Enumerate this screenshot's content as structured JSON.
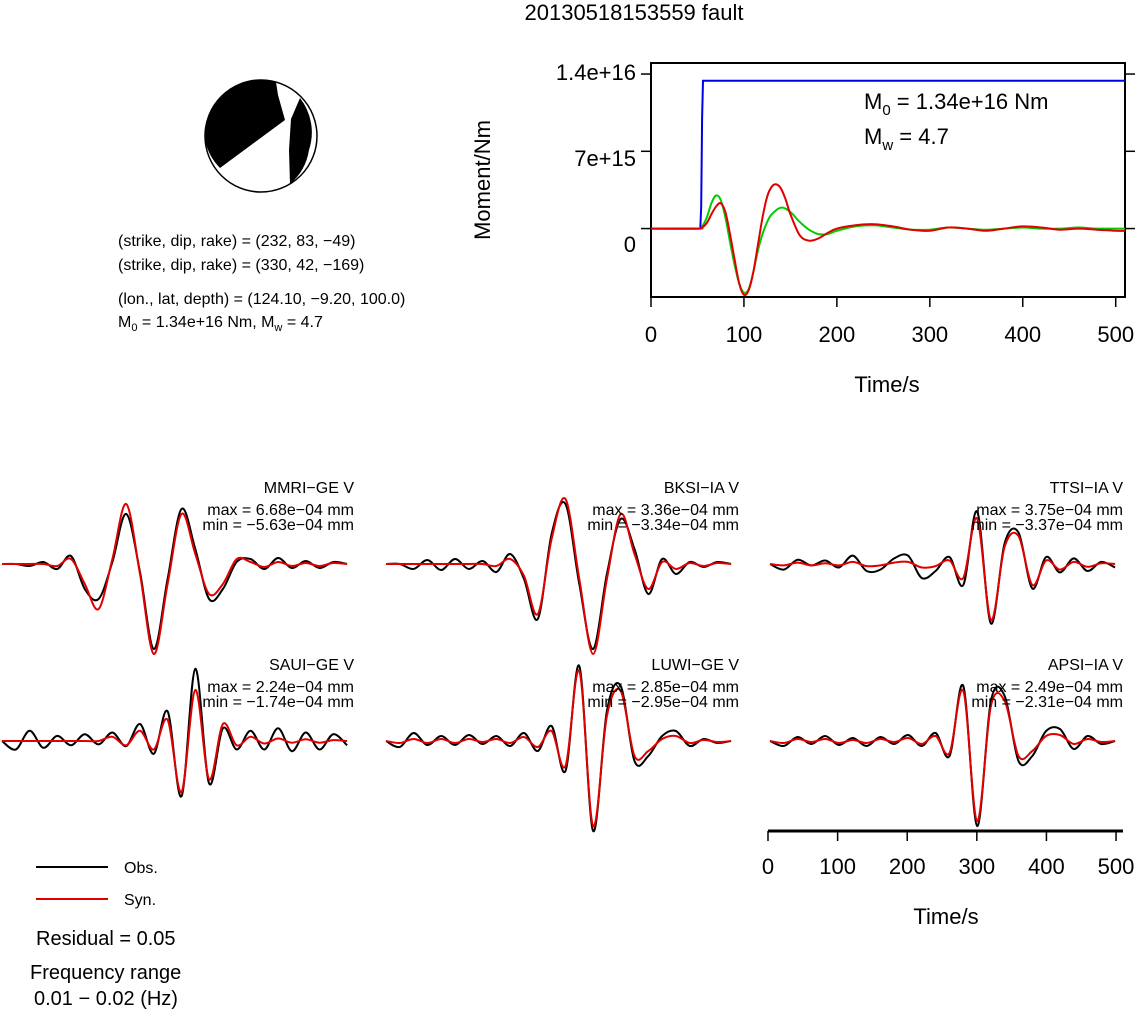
{
  "title": "20130518153559 fault",
  "mechanism": {
    "lines": [
      "(strike, dip, rake) = (232, 83, −49)",
      "(strike, dip, rake) = (330, 42, −169)",
      "(lon., lat, depth) = (124.10, −9.20, 100.0)"
    ],
    "m0_prefix": "M",
    "m0_sub": "0",
    "m0_rest": " = 1.34e+16 Nm, M",
    "mw_sub": "w",
    "mw_rest": " = 4.7"
  },
  "moment": {
    "ylabel": "Moment/Nm",
    "xlabel": "Time/s",
    "y_ticks": [
      "1.4e+16",
      "7e+15",
      "0"
    ],
    "x_ticks": [
      "0",
      "100",
      "200",
      "300",
      "400",
      "500"
    ],
    "annot_m0_prefix": "M",
    "annot_m0_sub": "0",
    "annot_m0_rest": " = 1.34e+16 Nm",
    "annot_mw_prefix": "M",
    "annot_mw_sub": "w",
    "annot_mw_rest": " = 4.7"
  },
  "waveforms_axis": {
    "xlabel": "Time/s",
    "x_ticks": [
      "0",
      "100",
      "200",
      "300",
      "400",
      "500"
    ]
  },
  "legend": {
    "obs": "Obs.",
    "syn": "Syn.",
    "residual": "Residual = 0.05",
    "freq_title": "Frequency range",
    "freq_value": "0.01 − 0.02 (Hz)"
  },
  "colors": {
    "obs": "#000000",
    "syn": "#e00000",
    "moment": "#0000e0",
    "rate": "#00cc00"
  },
  "chart_data": [
    {
      "type": "line",
      "ylabel": "Moment/Nm",
      "xlabel": "Time/s",
      "xlim": [
        0,
        510
      ],
      "ylim": [
        -6200000000000000.0,
        1.5e+16
      ],
      "series": [
        {
          "x": [
            0,
            53,
            54,
            55,
            56,
            510
          ],
          "y": [
            0,
            0,
            2000000000000000.0,
            1e+16,
            1.34e+16,
            1.34e+16
          ]
        },
        {
          "x": [
            0,
            50,
            55,
            60,
            65,
            70,
            75,
            80,
            85,
            90,
            95,
            100,
            105,
            110,
            115,
            120,
            125,
            130,
            140,
            150,
            160,
            170,
            180,
            190,
            200,
            220,
            240,
            260,
            280,
            300,
            320,
            340,
            360,
            380,
            400,
            420,
            440,
            460,
            480,
            500,
            510
          ],
          "y": [
            0,
            0,
            200000000000000.0,
            1000000000000000.0,
            2300000000000000.0,
            3000000000000000.0,
            2600000000000000.0,
            1000000000000000.0,
            -1200000000000000.0,
            -3300000000000000.0,
            -5000000000000000.0,
            -5800000000000000.0,
            -5500000000000000.0,
            -4000000000000000.0,
            -2000000000000000.0,
            -500000000000000.0,
            600000000000000.0,
            1300000000000000.0,
            1900000000000000.0,
            1500000000000000.0,
            600000000000000.0,
            -100000000000000.0,
            -500000000000000.0,
            -500000000000000.0,
            -200000000000000.0,
            200000000000000.0,
            300000000000000.0,
            100000000000000.0,
            -100000000000000.0,
            -100000000000000.0,
            100000000000000.0,
            0,
            -100000000000000.0,
            0,
            100000000000000.0,
            0,
            0,
            100000000000000.0,
            0,
            0,
            0
          ]
        },
        {
          "x": [
            0,
            50,
            55,
            60,
            65,
            70,
            75,
            80,
            85,
            90,
            95,
            100,
            105,
            110,
            115,
            120,
            125,
            130,
            135,
            140,
            145,
            150,
            160,
            170,
            180,
            190,
            200,
            220,
            240,
            260,
            280,
            300,
            320,
            340,
            360,
            380,
            400,
            420,
            440,
            460,
            480,
            500,
            510
          ],
          "y": [
            0,
            0,
            100000000000000.0,
            500000000000000.0,
            1300000000000000.0,
            2000000000000000.0,
            2300000000000000.0,
            1500000000000000.0,
            -500000000000000.0,
            -2800000000000000.0,
            -5000000000000000.0,
            -6000000000000000.0,
            -5600000000000000.0,
            -4000000000000000.0,
            -1500000000000000.0,
            1000000000000000.0,
            2900000000000000.0,
            3800000000000000.0,
            4000000000000000.0,
            3600000000000000.0,
            2600000000000000.0,
            1300000000000000.0,
            -600000000000000.0,
            -1100000000000000.0,
            -900000000000000.0,
            -400000000000000.0,
            0,
            300000000000000.0,
            400000000000000.0,
            200000000000000.0,
            -100000000000000.0,
            -200000000000000.0,
            100000000000000.0,
            0,
            -200000000000000.0,
            0,
            200000000000000.0,
            100000000000000.0,
            -100000000000000.0,
            0,
            -100000000000000.0,
            -200000000000000.0,
            -200000000000000.0
          ]
        }
      ]
    },
    {
      "type": "line",
      "title": "MMRI−GE V",
      "annotations": [
        "max = 6.68e−04 mm",
        "min = −5.63e−04 mm"
      ],
      "xlim": [
        0,
        510
      ],
      "series": [
        {
          "x": [
            0,
            20,
            40,
            60,
            80,
            100,
            120,
            140,
            160,
            180,
            200,
            220,
            240,
            260,
            280,
            300,
            320,
            340,
            360,
            380,
            400,
            420,
            440,
            460,
            480,
            500
          ],
          "y": [
            0,
            0,
            -0.02,
            0.02,
            -0.05,
            0.08,
            -0.25,
            -0.35,
            0.02,
            0.5,
            -0.08,
            -0.85,
            -0.15,
            0.55,
            0.15,
            -0.35,
            -0.25,
            0.02,
            0.05,
            -0.05,
            0.06,
            -0.04,
            0.03,
            -0.04,
            0.02,
            0
          ]
        },
        {
          "x": [
            0,
            20,
            40,
            60,
            80,
            100,
            120,
            140,
            160,
            180,
            200,
            220,
            240,
            260,
            280,
            300,
            320,
            340,
            360,
            380,
            400,
            420,
            440,
            460,
            480,
            500
          ],
          "y": [
            0,
            0,
            0,
            0,
            -0.02,
            0.05,
            -0.2,
            -0.45,
            0.05,
            0.6,
            -0.1,
            -0.9,
            -0.2,
            0.5,
            0.1,
            -0.3,
            -0.2,
            0.05,
            0.02,
            -0.03,
            0.02,
            -0.02,
            0.01,
            -0.02,
            0.01,
            0
          ]
        }
      ]
    },
    {
      "type": "line",
      "title": "BKSI−IA V",
      "annotations": [
        "max = 3.36e−04 mm",
        "min = −3.34e−04 mm"
      ],
      "xlim": [
        0,
        510
      ],
      "series": [
        {
          "x": [
            0,
            20,
            40,
            60,
            80,
            100,
            120,
            140,
            160,
            180,
            200,
            220,
            240,
            260,
            280,
            300,
            320,
            340,
            360,
            380,
            400,
            420,
            440,
            460,
            480,
            500
          ],
          "y": [
            0,
            0,
            -0.05,
            0.04,
            -0.06,
            0.05,
            -0.05,
            0.03,
            -0.08,
            0.1,
            -0.15,
            -0.55,
            0.3,
            0.6,
            -0.2,
            -0.85,
            -0.1,
            0.45,
            0.15,
            -0.3,
            0.05,
            -0.1,
            0.02,
            -0.03,
            0.02,
            0
          ]
        },
        {
          "x": [
            0,
            20,
            40,
            60,
            80,
            100,
            120,
            140,
            160,
            180,
            200,
            220,
            240,
            260,
            280,
            300,
            320,
            340,
            360,
            380,
            400,
            420,
            440,
            460,
            480,
            500
          ],
          "y": [
            0,
            0,
            0,
            0,
            0,
            0,
            0,
            0,
            -0.02,
            0.05,
            -0.12,
            -0.5,
            0.25,
            0.65,
            -0.15,
            -0.9,
            -0.15,
            0.5,
            0.1,
            -0.25,
            0.02,
            -0.05,
            0.01,
            -0.02,
            0.01,
            0
          ]
        }
      ]
    },
    {
      "type": "line",
      "title": "TTSI−IA V",
      "annotations": [
        "max = 3.75e−04 mm",
        "min = −3.37e−04 mm"
      ],
      "xlim": [
        0,
        510
      ],
      "series": [
        {
          "x": [
            0,
            20,
            40,
            60,
            80,
            100,
            120,
            140,
            160,
            180,
            200,
            220,
            240,
            260,
            280,
            300,
            320,
            340,
            360,
            380,
            400,
            420,
            440,
            460,
            480,
            500
          ],
          "y": [
            0,
            -0.08,
            0.06,
            -0.02,
            0.05,
            -0.05,
            0.12,
            -0.1,
            -0.08,
            0.08,
            0.12,
            -0.2,
            -0.1,
            0.1,
            -0.3,
            0.75,
            -0.85,
            0.3,
            0.45,
            -0.35,
            0.1,
            -0.12,
            0.08,
            -0.1,
            0.03,
            -0.05
          ]
        },
        {
          "x": [
            0,
            20,
            40,
            60,
            80,
            100,
            120,
            140,
            160,
            180,
            200,
            220,
            240,
            260,
            280,
            300,
            320,
            340,
            360,
            380,
            400,
            420,
            440,
            460,
            480,
            500
          ],
          "y": [
            0,
            -0.02,
            0.02,
            -0.02,
            0.01,
            -0.02,
            0.03,
            -0.03,
            -0.02,
            0.02,
            0.03,
            -0.05,
            -0.03,
            0.05,
            -0.2,
            0.65,
            -0.8,
            0.25,
            0.4,
            -0.3,
            0.05,
            -0.08,
            0.03,
            -0.04,
            0.01,
            0
          ]
        }
      ]
    },
    {
      "type": "line",
      "title": "SAUI−GE V",
      "annotations": [
        "max = 2.24e−04 mm",
        "min = −1.74e−04 mm"
      ],
      "xlim": [
        0,
        510
      ],
      "series": [
        {
          "x": [
            0,
            20,
            40,
            60,
            80,
            100,
            120,
            140,
            160,
            180,
            200,
            220,
            240,
            260,
            280,
            300,
            320,
            340,
            360,
            380,
            400,
            420,
            440,
            460,
            480,
            500
          ],
          "y": [
            0,
            -0.1,
            0.12,
            -0.08,
            0.06,
            -0.05,
            0.08,
            -0.04,
            0.1,
            -0.06,
            0.2,
            -0.15,
            0.35,
            -0.65,
            0.85,
            -0.5,
            0.15,
            -0.1,
            0.12,
            -0.1,
            0.15,
            -0.12,
            0.1,
            -0.1,
            0.08,
            -0.05
          ]
        },
        {
          "x": [
            0,
            20,
            40,
            60,
            80,
            100,
            120,
            140,
            160,
            180,
            200,
            220,
            240,
            260,
            280,
            300,
            320,
            340,
            360,
            380,
            400,
            420,
            440,
            460,
            480,
            500
          ],
          "y": [
            0,
            0,
            0,
            0,
            0,
            0,
            0,
            0,
            0.05,
            -0.05,
            0.12,
            -0.1,
            0.25,
            -0.6,
            0.6,
            -0.45,
            0.2,
            -0.05,
            0.05,
            -0.03,
            0.03,
            -0.02,
            0.02,
            -0.02,
            0.01,
            0
          ]
        }
      ]
    },
    {
      "type": "line",
      "title": "LUWI−GE V",
      "annotations": [
        "max = 2.85e−04 mm",
        "min = −2.95e−04 mm"
      ],
      "xlim": [
        0,
        510
      ],
      "series": [
        {
          "x": [
            0,
            20,
            40,
            60,
            80,
            100,
            120,
            140,
            160,
            180,
            200,
            220,
            240,
            260,
            280,
            300,
            320,
            340,
            360,
            380,
            400,
            420,
            440,
            460,
            480,
            500
          ],
          "y": [
            0,
            -0.06,
            0.08,
            -0.04,
            0.05,
            -0.04,
            0.06,
            -0.03,
            0.05,
            -0.05,
            0.08,
            -0.1,
            0.15,
            -0.3,
            0.75,
            -0.9,
            0.3,
            0.55,
            -0.2,
            -0.15,
            0.05,
            0.1,
            -0.05,
            0.02,
            -0.02,
            0
          ]
        },
        {
          "x": [
            0,
            20,
            40,
            60,
            80,
            100,
            120,
            140,
            160,
            180,
            200,
            220,
            240,
            260,
            280,
            300,
            320,
            340,
            360,
            380,
            400,
            420,
            440,
            460,
            480,
            500
          ],
          "y": [
            0,
            -0.02,
            0.02,
            -0.02,
            0.02,
            -0.02,
            0.02,
            -0.01,
            0.02,
            -0.02,
            0.04,
            -0.06,
            0.1,
            -0.25,
            0.7,
            -0.85,
            0.25,
            0.5,
            -0.15,
            -0.1,
            0.02,
            0.05,
            -0.02,
            0.01,
            -0.01,
            0
          ]
        }
      ]
    },
    {
      "type": "line",
      "title": "APSI−IA V",
      "annotations": [
        "max = 2.49e−04 mm",
        "min = −2.31e−04 mm"
      ],
      "xlim": [
        0,
        510
      ],
      "series": [
        {
          "x": [
            0,
            20,
            40,
            60,
            80,
            100,
            120,
            140,
            160,
            180,
            200,
            220,
            240,
            260,
            280,
            300,
            320,
            340,
            360,
            380,
            400,
            420,
            440,
            460,
            480,
            500
          ],
          "y": [
            0,
            -0.05,
            0.04,
            -0.03,
            0.05,
            -0.04,
            0.03,
            -0.05,
            0.04,
            -0.03,
            0.06,
            -0.05,
            0.08,
            -0.15,
            0.55,
            -0.85,
            0.4,
            0.45,
            -0.2,
            -0.15,
            0.1,
            0.12,
            -0.08,
            0.05,
            -0.03,
            0
          ]
        },
        {
          "x": [
            0,
            20,
            40,
            60,
            80,
            100,
            120,
            140,
            160,
            180,
            200,
            220,
            240,
            260,
            280,
            300,
            320,
            340,
            360,
            380,
            400,
            420,
            440,
            460,
            480,
            500
          ],
          "y": [
            0,
            -0.02,
            0.02,
            -0.01,
            0.02,
            -0.02,
            0.01,
            -0.02,
            0.02,
            -0.01,
            0.03,
            -0.03,
            0.05,
            -0.12,
            0.5,
            -0.8,
            0.35,
            0.4,
            -0.15,
            -0.1,
            0.05,
            0.06,
            -0.03,
            0.02,
            -0.01,
            0
          ]
        }
      ]
    }
  ]
}
